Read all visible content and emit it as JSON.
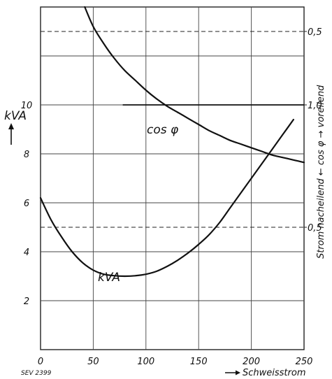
{
  "chart_data": {
    "type": "line",
    "xlabel": "Schweisstrom",
    "left_ylabel": "kVA",
    "right_ylabel": "Strom nacheilend ← cos φ → voreilend",
    "xlim": [
      0,
      250
    ],
    "left_ylim": [
      0,
      14
    ],
    "x_ticks": [
      "0",
      "50",
      "100",
      "150",
      "200",
      "250"
    ],
    "left_y_ticks": [
      "2",
      "4",
      "6",
      "8",
      "10"
    ],
    "left_y_tick_values": [
      2,
      4,
      6,
      8,
      10
    ],
    "right_y_ticks": [
      "0,5",
      "1,0",
      "0,5"
    ],
    "right_y_tick_values": [
      13.0,
      10.0,
      5.0
    ],
    "cos_phi_reference_line": {
      "y": 10.0,
      "x_from": 78,
      "x_to": 250
    },
    "dashed_lines_y": [
      13.0,
      5.0
    ],
    "grid": true,
    "annotation": "SEV 2399",
    "series": [
      {
        "name": "kVA",
        "x": [
          0,
          10,
          20,
          30,
          40,
          50,
          60,
          70,
          80,
          90,
          100,
          110,
          120,
          130,
          140,
          150,
          160,
          170,
          180,
          190,
          200,
          210,
          220,
          230,
          240
        ],
        "y": [
          6.2,
          5.3,
          4.6,
          4.0,
          3.55,
          3.25,
          3.08,
          3.02,
          3.0,
          3.02,
          3.08,
          3.2,
          3.4,
          3.65,
          3.95,
          4.3,
          4.7,
          5.2,
          5.8,
          6.4,
          7.0,
          7.6,
          8.2,
          8.8,
          9.4
        ]
      },
      {
        "name": "cos φ",
        "x": [
          42,
          50,
          60,
          70,
          80,
          90,
          100,
          110,
          120,
          130,
          140,
          150,
          160,
          170,
          180,
          190,
          200,
          210,
          220,
          230,
          240,
          250
        ],
        "y": [
          14.0,
          13.2,
          12.5,
          11.9,
          11.4,
          11.0,
          10.6,
          10.25,
          9.95,
          9.7,
          9.45,
          9.2,
          8.95,
          8.75,
          8.55,
          8.4,
          8.25,
          8.1,
          7.95,
          7.85,
          7.75,
          7.65
        ]
      }
    ]
  }
}
